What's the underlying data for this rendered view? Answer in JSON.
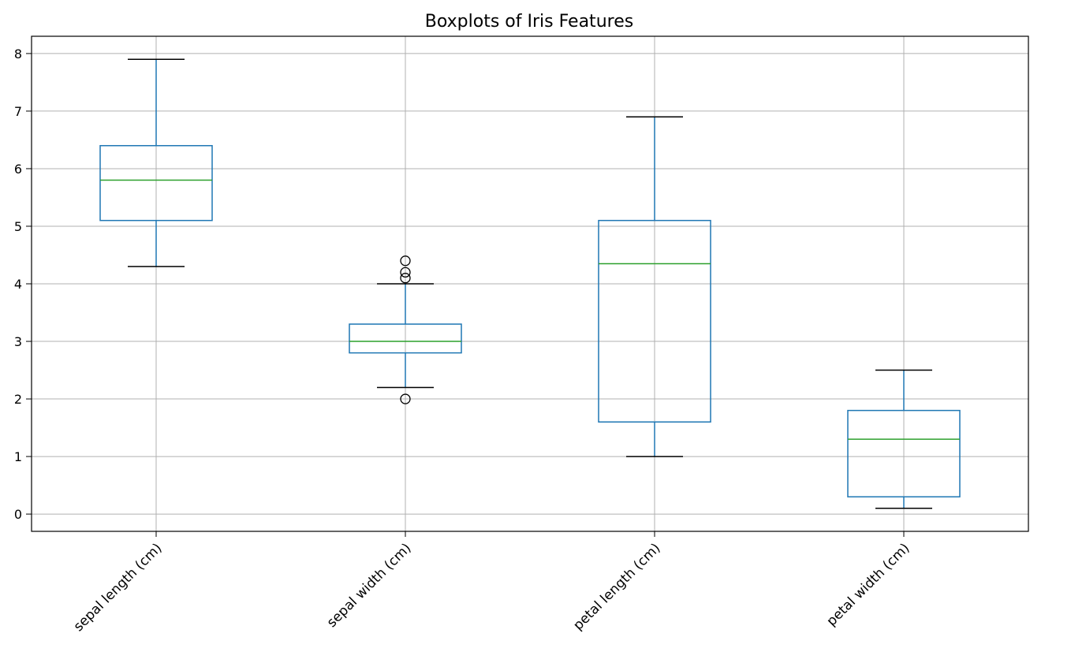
{
  "chart_data": {
    "type": "boxplot",
    "title": "Boxplots of Iris Features",
    "xlabel": "",
    "ylabel": "",
    "ylim": [
      -0.3,
      8.3
    ],
    "yticks": [
      0,
      1,
      2,
      3,
      4,
      5,
      6,
      7,
      8
    ],
    "grid": true,
    "categories": [
      "sepal length (cm)",
      "sepal width (cm)",
      "petal length (cm)",
      "petal width (cm)"
    ],
    "boxes": [
      {
        "category": "sepal length (cm)",
        "whisker_low": 4.3,
        "q1": 5.1,
        "median": 5.8,
        "q3": 6.4,
        "whisker_high": 7.9,
        "outliers": []
      },
      {
        "category": "sepal width (cm)",
        "whisker_low": 2.2,
        "q1": 2.8,
        "median": 3.0,
        "q3": 3.3,
        "whisker_high": 4.0,
        "outliers": [
          2.0,
          4.1,
          4.2,
          4.4
        ]
      },
      {
        "category": "petal length (cm)",
        "whisker_low": 1.0,
        "q1": 1.6,
        "median": 4.35,
        "q3": 5.1,
        "whisker_high": 6.9,
        "outliers": []
      },
      {
        "category": "petal width (cm)",
        "whisker_low": 0.1,
        "q1": 0.3,
        "median": 1.3,
        "q3": 1.8,
        "whisker_high": 2.5,
        "outliers": []
      }
    ],
    "colors": {
      "box": "#1f77b4",
      "median": "#2ca02c",
      "whisker_cap": "#000000",
      "outlier": "#000000",
      "grid": "#b0b0b0"
    }
  }
}
